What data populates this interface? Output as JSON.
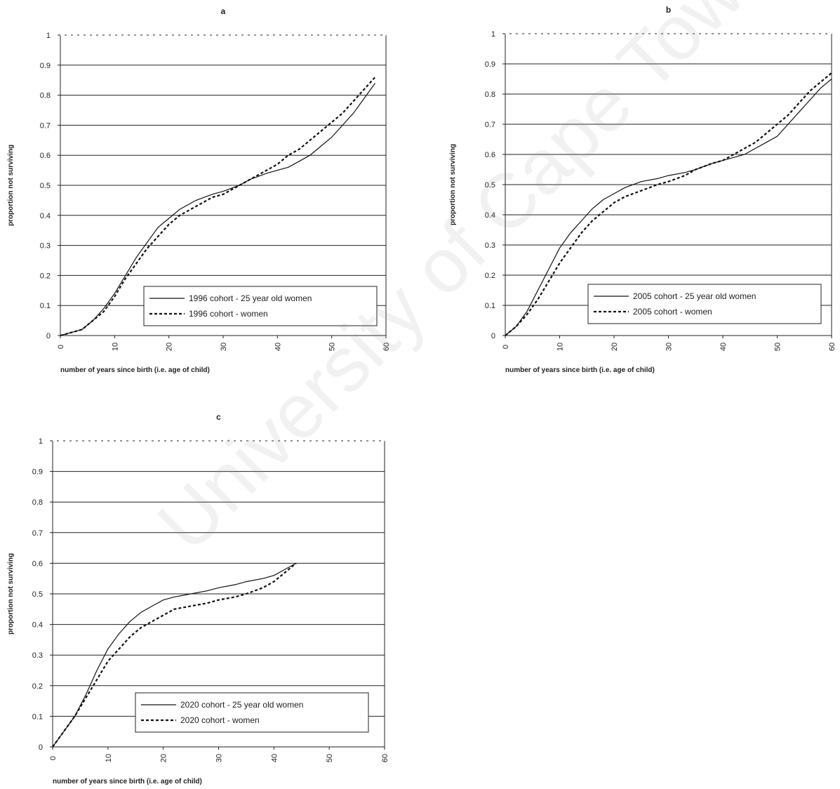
{
  "watermark": "University of Cape Town",
  "chart_data": [
    {
      "panel": "a",
      "type": "line",
      "title": "a",
      "xlabel": "number of years since birth (i.e. age of child)",
      "ylabel": "proportion not surviving",
      "xlim": [
        0,
        60
      ],
      "ylim": [
        0,
        1
      ],
      "xticks": [
        "0",
        "10",
        "20",
        "30",
        "40",
        "50",
        "60"
      ],
      "yticks": [
        "0",
        "0.1",
        "0.2",
        "0.3",
        "0.4",
        "0.5",
        "0.6",
        "0.7",
        "0.8",
        "0.9",
        "1"
      ],
      "grid": true,
      "legend_position": "bottom-right",
      "series": [
        {
          "name": "1996 cohort - 25 year old women",
          "style": "solid",
          "x": [
            0,
            2,
            4,
            6,
            8,
            10,
            12,
            14,
            16,
            18,
            20,
            22,
            25,
            28,
            30,
            33,
            35,
            38,
            40,
            42,
            44,
            46,
            48,
            50,
            52,
            54,
            56,
            58
          ],
          "y": [
            0,
            0.01,
            0.02,
            0.05,
            0.09,
            0.14,
            0.2,
            0.26,
            0.31,
            0.36,
            0.39,
            0.42,
            0.45,
            0.47,
            0.48,
            0.5,
            0.52,
            0.54,
            0.55,
            0.56,
            0.58,
            0.6,
            0.63,
            0.66,
            0.7,
            0.74,
            0.79,
            0.84
          ]
        },
        {
          "name": "1996 cohort - women",
          "style": "dashed",
          "x": [
            0,
            2,
            4,
            6,
            8,
            10,
            12,
            14,
            16,
            18,
            20,
            22,
            25,
            28,
            30,
            33,
            35,
            38,
            40,
            42,
            44,
            46,
            48,
            50,
            52,
            54,
            56,
            58
          ],
          "y": [
            0,
            0.01,
            0.02,
            0.05,
            0.08,
            0.13,
            0.19,
            0.24,
            0.29,
            0.33,
            0.37,
            0.4,
            0.43,
            0.46,
            0.47,
            0.5,
            0.52,
            0.55,
            0.57,
            0.6,
            0.62,
            0.65,
            0.68,
            0.71,
            0.74,
            0.78,
            0.82,
            0.86
          ]
        }
      ]
    },
    {
      "panel": "b",
      "type": "line",
      "title": "b",
      "xlabel": "number of years since birth (i.e. age of child)",
      "ylabel": "proportion not surviving",
      "xlim": [
        0,
        60
      ],
      "ylim": [
        0,
        1
      ],
      "xticks": [
        "0",
        "10",
        "20",
        "30",
        "40",
        "50",
        "60"
      ],
      "yticks": [
        "0",
        "0.1",
        "0.2",
        "0.3",
        "0.4",
        "0.5",
        "0.6",
        "0.7",
        "0.8",
        "0.9",
        "1"
      ],
      "grid": true,
      "legend_position": "bottom-right",
      "series": [
        {
          "name": "2005 cohort - 25 year old women",
          "style": "solid",
          "x": [
            0,
            2,
            4,
            6,
            8,
            10,
            12,
            14,
            16,
            18,
            20,
            22,
            25,
            28,
            30,
            33,
            35,
            38,
            40,
            42,
            44,
            46,
            48,
            50,
            52,
            54,
            56,
            58,
            60
          ],
          "y": [
            0,
            0.03,
            0.08,
            0.15,
            0.22,
            0.29,
            0.34,
            0.38,
            0.42,
            0.45,
            0.47,
            0.49,
            0.51,
            0.52,
            0.53,
            0.54,
            0.55,
            0.57,
            0.58,
            0.59,
            0.6,
            0.62,
            0.64,
            0.66,
            0.7,
            0.74,
            0.78,
            0.82,
            0.85
          ]
        },
        {
          "name": "2005 cohort - women",
          "style": "dashed",
          "x": [
            0,
            2,
            4,
            6,
            8,
            10,
            12,
            14,
            16,
            18,
            20,
            22,
            25,
            28,
            30,
            33,
            35,
            38,
            40,
            42,
            44,
            46,
            48,
            50,
            52,
            54,
            56,
            58,
            60
          ],
          "y": [
            0,
            0.03,
            0.07,
            0.12,
            0.18,
            0.24,
            0.29,
            0.34,
            0.38,
            0.41,
            0.44,
            0.46,
            0.48,
            0.5,
            0.51,
            0.53,
            0.55,
            0.57,
            0.58,
            0.6,
            0.62,
            0.64,
            0.67,
            0.7,
            0.73,
            0.77,
            0.81,
            0.84,
            0.87
          ]
        }
      ]
    },
    {
      "panel": "c",
      "type": "line",
      "title": "c",
      "xlabel": "number of years since birth (i.e. age of child)",
      "ylabel": "proportion not surviving",
      "xlim": [
        0,
        60
      ],
      "ylim": [
        0,
        1
      ],
      "xticks": [
        "0",
        "10",
        "20",
        "30",
        "40",
        "50",
        "60"
      ],
      "yticks": [
        "0",
        "0.1",
        "0.2",
        "0.3",
        "0.4",
        "0.5",
        "0.6",
        "0.7",
        "0.8",
        "0.9",
        "1"
      ],
      "grid": true,
      "legend_position": "bottom-right",
      "series": [
        {
          "name": "2020 cohort - 25 year old women",
          "style": "solid",
          "x": [
            0,
            2,
            4,
            6,
            8,
            10,
            12,
            14,
            16,
            18,
            20,
            22,
            25,
            28,
            30,
            33,
            35,
            38,
            40,
            42,
            44
          ],
          "y": [
            0,
            0.05,
            0.1,
            0.17,
            0.25,
            0.32,
            0.37,
            0.41,
            0.44,
            0.46,
            0.48,
            0.49,
            0.5,
            0.51,
            0.52,
            0.53,
            0.54,
            0.55,
            0.56,
            0.58,
            0.6
          ]
        },
        {
          "name": "2020 cohort - women",
          "style": "dashed",
          "x": [
            0,
            2,
            4,
            6,
            8,
            10,
            12,
            14,
            16,
            18,
            20,
            22,
            25,
            28,
            30,
            33,
            35,
            38,
            40,
            42,
            44
          ],
          "y": [
            0,
            0.05,
            0.1,
            0.16,
            0.22,
            0.28,
            0.32,
            0.36,
            0.39,
            0.41,
            0.43,
            0.45,
            0.46,
            0.47,
            0.48,
            0.49,
            0.5,
            0.52,
            0.54,
            0.57,
            0.6
          ]
        }
      ]
    }
  ]
}
